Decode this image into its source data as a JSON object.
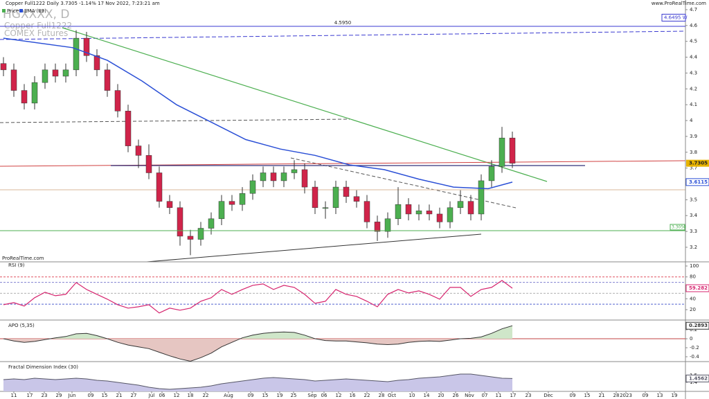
{
  "header": {
    "title": "Copper Full1222 Daily 3.7305 -1.14% 17 Nov 2022, 7:23:21 am",
    "legend": [
      "Price",
      "EMA (89)"
    ],
    "watermark": [
      "HGXXXX, D",
      "Copper Full1222",
      "COMEX Futures"
    ],
    "site": "www.ProRealTime.com",
    "footer": "ProRealTime.com"
  },
  "chart_data": [
    {
      "type": "candlestick",
      "title": "Price",
      "up_color": "#4caf50",
      "down_color": "#d0244a",
      "x": [
        0,
        3,
        6,
        9,
        12,
        15,
        18,
        21,
        24,
        27,
        30,
        33,
        36,
        39,
        42,
        45,
        48,
        51,
        54,
        57,
        60,
        63,
        66,
        69,
        72,
        75,
        78,
        81,
        84,
        87,
        90,
        93,
        96,
        99,
        102,
        105,
        108,
        111,
        114,
        117,
        120,
        123,
        126,
        129,
        132,
        135,
        138,
        141,
        144,
        147
      ],
      "open": [
        4.36,
        4.32,
        4.19,
        4.11,
        4.24,
        4.32,
        4.28,
        4.32,
        4.52,
        4.41,
        4.32,
        4.19,
        4.06,
        3.84,
        3.78,
        3.67,
        3.49,
        3.45,
        3.27,
        3.25,
        3.32,
        3.38,
        3.49,
        3.47,
        3.54,
        3.62,
        3.67,
        3.62,
        3.67,
        3.69,
        3.58,
        3.45,
        3.45,
        3.58,
        3.52,
        3.49,
        3.36,
        3.3,
        3.38,
        3.47,
        3.41,
        3.43,
        3.41,
        3.36,
        3.45,
        3.49,
        3.41,
        3.62,
        3.71,
        3.89
      ],
      "high": [
        4.4,
        4.36,
        4.23,
        4.28,
        4.36,
        4.36,
        4.36,
        4.57,
        4.56,
        4.45,
        4.36,
        4.23,
        4.1,
        3.88,
        3.85,
        3.71,
        3.53,
        3.49,
        3.31,
        3.36,
        3.42,
        3.53,
        3.53,
        3.58,
        3.66,
        3.71,
        3.71,
        3.71,
        3.75,
        3.73,
        3.62,
        3.49,
        3.62,
        3.62,
        3.56,
        3.53,
        3.4,
        3.42,
        3.58,
        3.51,
        3.47,
        3.47,
        3.45,
        3.49,
        3.56,
        3.53,
        3.66,
        3.75,
        3.96,
        3.93
      ],
      "low": [
        4.28,
        4.15,
        4.07,
        4.07,
        4.2,
        4.24,
        4.24,
        4.28,
        4.37,
        4.28,
        4.15,
        4.02,
        3.8,
        3.7,
        3.63,
        3.45,
        3.41,
        3.21,
        3.15,
        3.21,
        3.28,
        3.34,
        3.43,
        3.43,
        3.5,
        3.58,
        3.58,
        3.58,
        3.63,
        3.54,
        3.41,
        3.38,
        3.41,
        3.48,
        3.45,
        3.32,
        3.24,
        3.26,
        3.34,
        3.37,
        3.37,
        3.37,
        3.32,
        3.32,
        3.41,
        3.37,
        3.37,
        3.58,
        3.67,
        3.7
      ],
      "close": [
        4.32,
        4.19,
        4.11,
        4.24,
        4.32,
        4.28,
        4.32,
        4.52,
        4.41,
        4.32,
        4.19,
        4.06,
        3.84,
        3.78,
        3.67,
        3.49,
        3.45,
        3.27,
        3.25,
        3.32,
        3.38,
        3.49,
        3.47,
        3.54,
        3.62,
        3.67,
        3.62,
        3.67,
        3.69,
        3.58,
        3.45,
        3.45,
        3.58,
        3.52,
        3.49,
        3.36,
        3.3,
        3.38,
        3.47,
        3.41,
        3.43,
        3.41,
        3.36,
        3.45,
        3.49,
        3.41,
        3.62,
        3.71,
        3.89,
        3.7305
      ],
      "last_value": 3.7305,
      "ema": {
        "name": "EMA (89)",
        "color": "#2a4fd6",
        "x": [
          0,
          20,
          30,
          40,
          50,
          60,
          70,
          80,
          90,
          100,
          110,
          120,
          130,
          140,
          147
        ],
        "values": [
          4.52,
          4.46,
          4.38,
          4.25,
          4.1,
          3.99,
          3.88,
          3.82,
          3.78,
          3.72,
          3.69,
          3.63,
          3.58,
          3.57,
          3.6115
        ],
        "last_value": 3.6115
      },
      "high_marker": {
        "value": 4.6495,
        "label": "4.6495 W"
      },
      "levels": [
        {
          "value": 4.595,
          "label": "4.5950",
          "color": "#3a3ad0",
          "label_position": "center"
        },
        {
          "value": 3.305,
          "label": "3.3050",
          "color": "#4caf50",
          "label_position": "right"
        }
      ],
      "ylim": [
        3.108,
        4.761
      ],
      "yticks": [
        3.2,
        3.3,
        3.4,
        3.5,
        3.6,
        3.7,
        3.8,
        3.9,
        4,
        4.1,
        4.2,
        4.3,
        4.4,
        4.5,
        4.6,
        4.7
      ],
      "xlim": [
        -1,
        197
      ],
      "xticks": [
        {
          "value": 3,
          "label": "11"
        },
        {
          "value": 7.6,
          "label": "17"
        },
        {
          "value": 11.8,
          "label": "23"
        },
        {
          "value": 16,
          "label": "29"
        },
        {
          "value": 19.8,
          "label": "Jun"
        },
        {
          "value": 25.2,
          "label": "09"
        },
        {
          "value": 29.2,
          "label": "15"
        },
        {
          "value": 33.4,
          "label": "21"
        },
        {
          "value": 37.6,
          "label": "27"
        },
        {
          "value": 42.8,
          "label": "Jul"
        },
        {
          "value": 45.8,
          "label": "06"
        },
        {
          "value": 50,
          "label": "12"
        },
        {
          "value": 54,
          "label": "18"
        },
        {
          "value": 58.4,
          "label": "22"
        },
        {
          "value": 65,
          "label": "Aug"
        },
        {
          "value": 71.4,
          "label": "09"
        },
        {
          "value": 75.6,
          "label": "15"
        },
        {
          "value": 79.8,
          "label": "19"
        },
        {
          "value": 83.8,
          "label": "25"
        },
        {
          "value": 89.2,
          "label": "Sep"
        },
        {
          "value": 92.6,
          "label": "06"
        },
        {
          "value": 96.8,
          "label": "12"
        },
        {
          "value": 100.8,
          "label": "16"
        },
        {
          "value": 105,
          "label": "22"
        },
        {
          "value": 109.2,
          "label": "28"
        },
        {
          "value": 112.2,
          "label": "Oct"
        },
        {
          "value": 118,
          "label": "10"
        },
        {
          "value": 122.2,
          "label": "14"
        },
        {
          "value": 126.4,
          "label": "20"
        },
        {
          "value": 130.6,
          "label": "26"
        },
        {
          "value": 134.6,
          "label": "Nov"
        },
        {
          "value": 139,
          "label": "07"
        },
        {
          "value": 143,
          "label": "11"
        },
        {
          "value": 147.2,
          "label": "17"
        },
        {
          "value": 151.6,
          "label": "23"
        },
        {
          "value": 157.4,
          "label": "Dec"
        },
        {
          "value": 164.4,
          "label": "09"
        },
        {
          "value": 168.6,
          "label": "15"
        },
        {
          "value": 172.8,
          "label": "21"
        },
        {
          "value": 177,
          "label": "28"
        },
        {
          "value": 179.8,
          "label": "2023"
        },
        {
          "value": 185.4,
          "label": "09"
        },
        {
          "value": 189.6,
          "label": "13"
        },
        {
          "value": 193.8,
          "label": "19"
        }
      ]
    },
    {
      "type": "line",
      "title": "RSI (9)",
      "color": "#d6246e",
      "x": [
        0,
        3,
        6,
        9,
        12,
        15,
        18,
        21,
        24,
        27,
        30,
        33,
        36,
        39,
        42,
        45,
        48,
        51,
        54,
        57,
        60,
        63,
        66,
        69,
        72,
        75,
        78,
        81,
        84,
        87,
        90,
        93,
        96,
        99,
        102,
        105,
        108,
        111,
        114,
        117,
        120,
        123,
        126,
        129,
        132,
        135,
        138,
        141,
        144,
        147
      ],
      "values": [
        29.1,
        32.9,
        26.6,
        41.8,
        51.9,
        45.6,
        48.1,
        69.6,
        57,
        48.1,
        39.2,
        29.1,
        22.8,
        25.3,
        29.1,
        13.9,
        22.8,
        19,
        22.8,
        35.4,
        41.8,
        57,
        48.1,
        57,
        64.6,
        67.1,
        57,
        64.6,
        60.8,
        48.1,
        31.6,
        35.4,
        57,
        48.1,
        44.3,
        35.4,
        25.3,
        48.1,
        57,
        50.6,
        54.4,
        48.1,
        39.2,
        60.8,
        60.8,
        44.3,
        57,
        60.8,
        73.4,
        59.282
      ],
      "last_value": 59.282,
      "levels": [
        80,
        70,
        50,
        30
      ],
      "level_colors": [
        "#e05060",
        "#8080d0",
        "#b0b0b0",
        "#5060d0"
      ],
      "ylim": [
        1,
        107.6
      ],
      "yticks": [
        20,
        40,
        80,
        100
      ]
    },
    {
      "type": "area",
      "title": "APO (5,35)",
      "color": "#333333",
      "fill_up": "#cfe6c9",
      "fill_down": "#e6c6c2",
      "x": [
        0,
        3,
        6,
        9,
        12,
        15,
        18,
        21,
        24,
        27,
        30,
        33,
        36,
        39,
        42,
        45,
        48,
        51,
        54,
        57,
        60,
        63,
        66,
        69,
        72,
        75,
        78,
        81,
        84,
        87,
        90,
        93,
        96,
        99,
        102,
        105,
        108,
        111,
        114,
        117,
        120,
        123,
        126,
        129,
        132,
        135,
        138,
        141,
        144,
        147
      ],
      "values": [
        0,
        -0.05,
        -0.08,
        -0.06,
        -0.02,
        0.02,
        0.05,
        0.11,
        0.12,
        0.07,
        0,
        -0.08,
        -0.14,
        -0.18,
        -0.22,
        -0.3,
        -0.38,
        -0.45,
        -0.5,
        -0.42,
        -0.32,
        -0.18,
        -0.08,
        0.02,
        0.08,
        0.12,
        0.14,
        0.15,
        0.14,
        0.08,
        0,
        -0.04,
        -0.05,
        -0.05,
        -0.07,
        -0.09,
        -0.12,
        -0.13,
        -0.12,
        -0.08,
        -0.06,
        -0.05,
        -0.06,
        -0.03,
        0,
        0.01,
        0.04,
        0.12,
        0.22,
        0.2893
      ],
      "last_value": 0.2893,
      "levels": [
        0
      ],
      "ylim": [
        -0.508,
        0.37
      ],
      "yticks": [
        -0.4,
        -0.2,
        0,
        0.2
      ]
    },
    {
      "type": "area",
      "title": "Fractal Dimension Index (30)",
      "color": "#555566",
      "fill": "#c9c6e8",
      "x": [
        0,
        3,
        6,
        9,
        12,
        15,
        18,
        21,
        24,
        27,
        30,
        33,
        36,
        39,
        42,
        45,
        48,
        51,
        54,
        57,
        60,
        63,
        66,
        69,
        72,
        75,
        78,
        81,
        84,
        87,
        90,
        93,
        96,
        99,
        102,
        105,
        108,
        111,
        114,
        117,
        120,
        123,
        126,
        129,
        132,
        135,
        138,
        141,
        144,
        147
      ],
      "values": [
        1.44,
        1.45,
        1.44,
        1.46,
        1.45,
        1.44,
        1.45,
        1.46,
        1.45,
        1.43,
        1.42,
        1.4,
        1.38,
        1.36,
        1.33,
        1.31,
        1.3,
        1.31,
        1.32,
        1.33,
        1.35,
        1.38,
        1.4,
        1.42,
        1.44,
        1.46,
        1.47,
        1.46,
        1.45,
        1.44,
        1.42,
        1.43,
        1.44,
        1.45,
        1.44,
        1.43,
        1.42,
        1.41,
        1.43,
        1.44,
        1.46,
        1.47,
        1.48,
        1.5,
        1.52,
        1.52,
        1.5,
        1.48,
        1.46,
        1.4562
      ],
      "last_value": 1.4562,
      "ylim": [
        1.27,
        1.67
      ],
      "yticks": [
        1.4,
        1.5
      ]
    }
  ]
}
